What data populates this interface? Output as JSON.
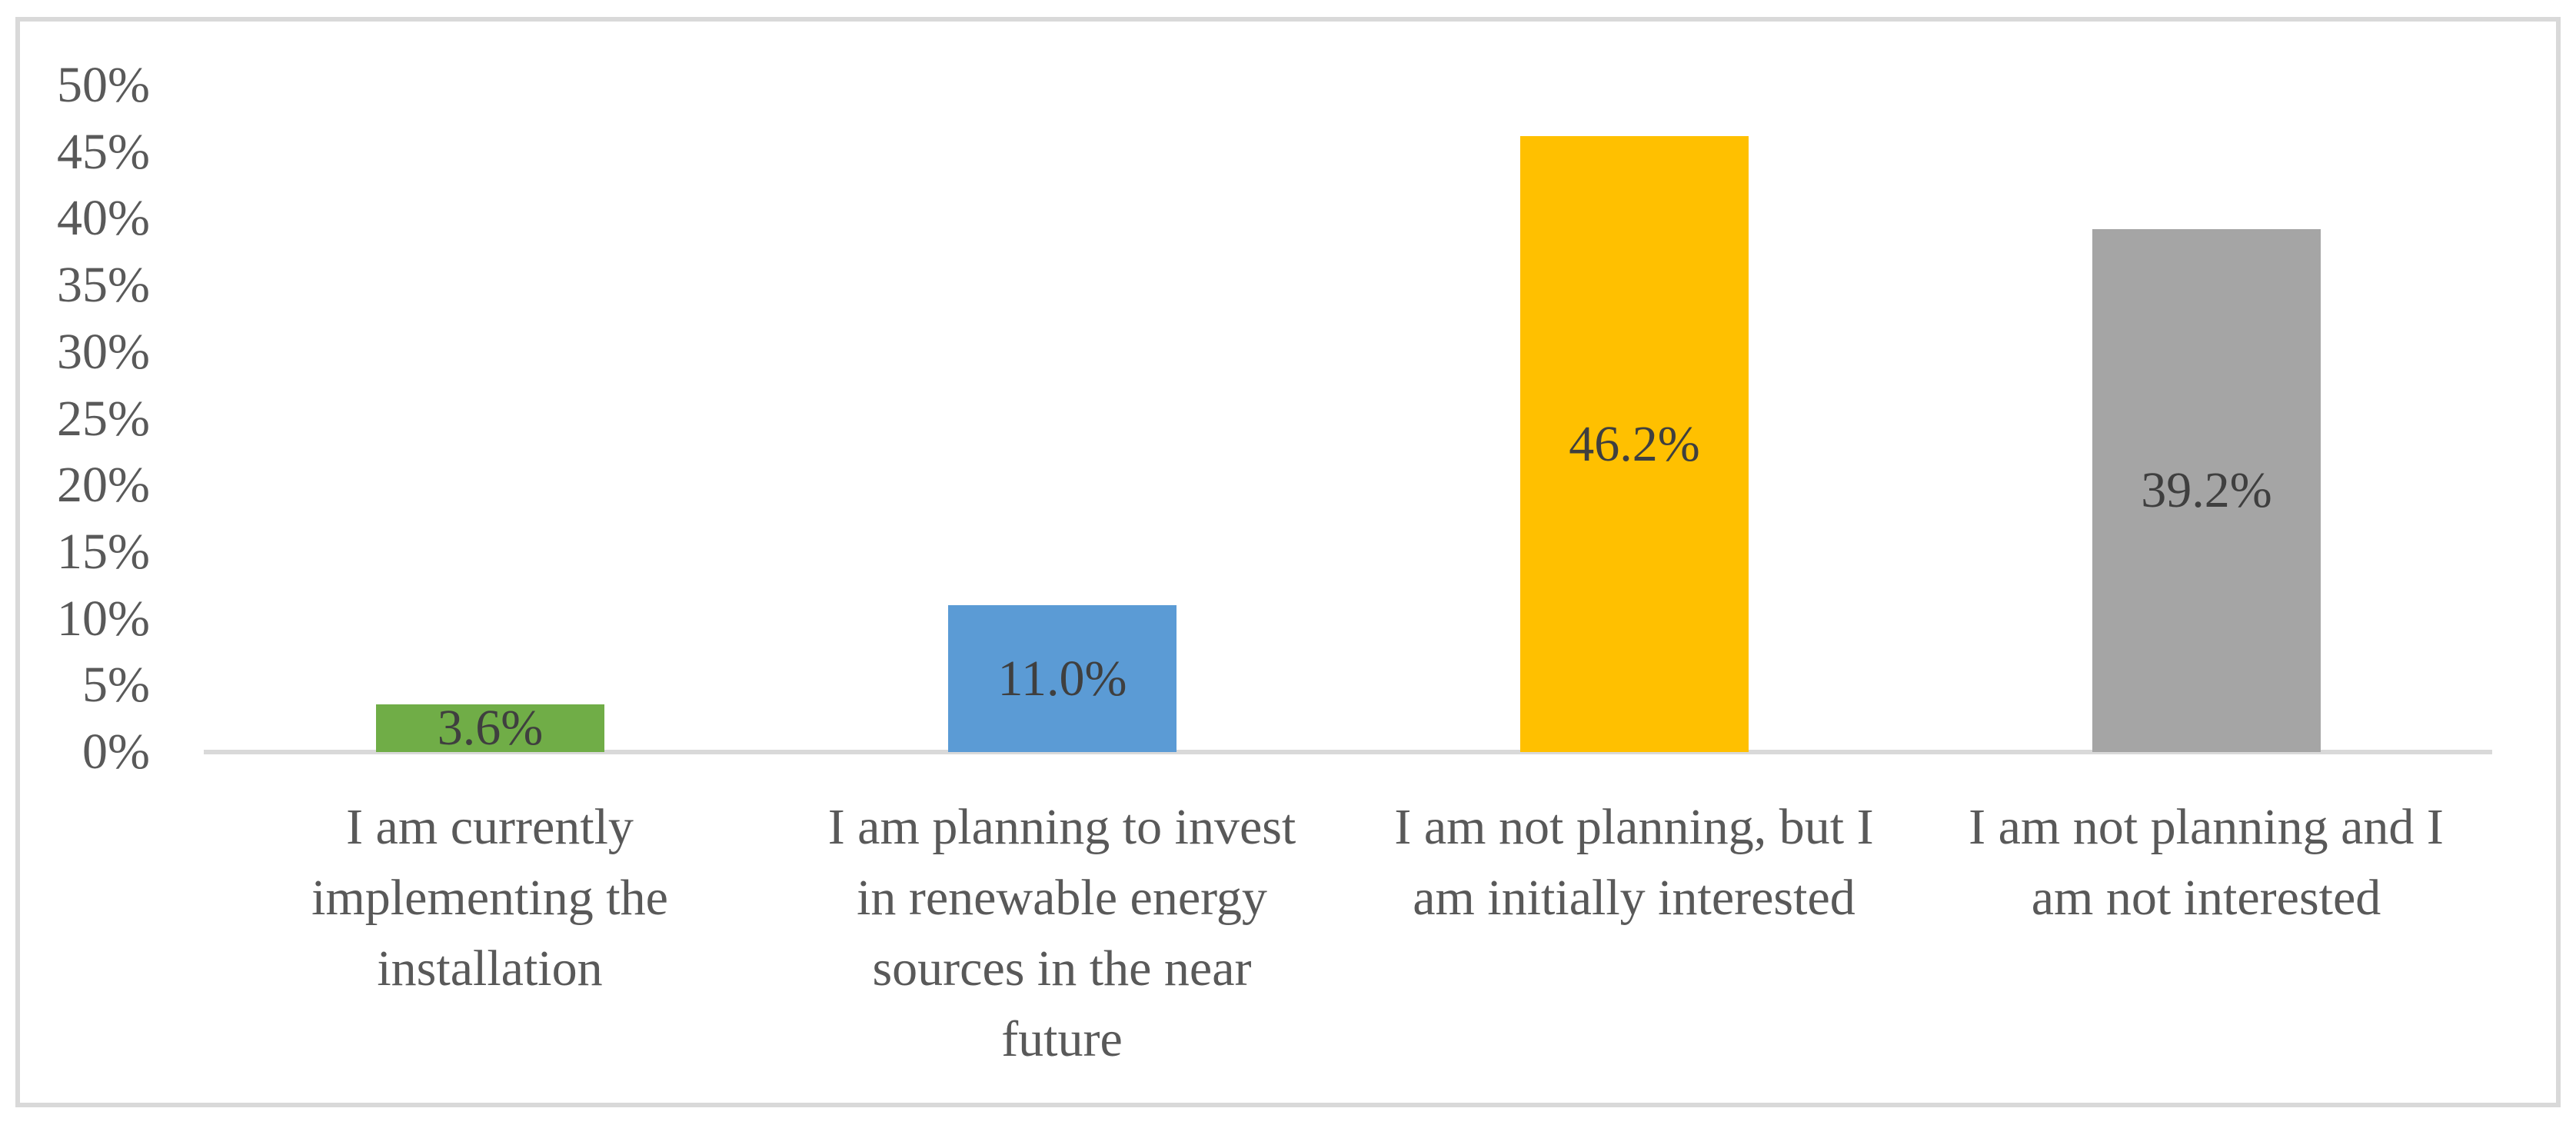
{
  "chart_data": {
    "type": "bar",
    "title": "",
    "xlabel": "",
    "ylabel": "",
    "grid": false,
    "legend": "none",
    "categories": [
      "I am currently implementing the installation",
      "I am planning to invest in renewable energy sources in the near future",
      "I am not planning, but I am initially interested",
      "I am not planning and I am not interested"
    ],
    "category_lines": [
      [
        "I am currently",
        "implementing the",
        "installation"
      ],
      [
        "I am planning to invest",
        "in renewable energy",
        "sources in the near",
        "future"
      ],
      [
        "I am not planning, but I",
        "am initially interested"
      ],
      [
        "I am not planning and I",
        "am not interested"
      ]
    ],
    "values": [
      3.6,
      11.0,
      46.2,
      39.2
    ],
    "data_labels": [
      "3.6%",
      "11.0%",
      "46.2%",
      "39.2%"
    ],
    "bar_colors": [
      "#70AD47",
      "#5B9BD5",
      "#FFC000",
      "#A5A5A5"
    ],
    "y_axis": {
      "min": 0,
      "max": 50,
      "step": 5,
      "ticks": [
        "0%",
        "5%",
        "10%",
        "15%",
        "20%",
        "25%",
        "30%",
        "35%",
        "40%",
        "45%",
        "50%"
      ]
    },
    "colors": {
      "axis_text": "#595959",
      "data_label_text": "#3F3F3F",
      "axis_line": "#D9D9D9",
      "chart_border": "#D9D9D9",
      "plot_background": "#FFFFFF"
    }
  }
}
